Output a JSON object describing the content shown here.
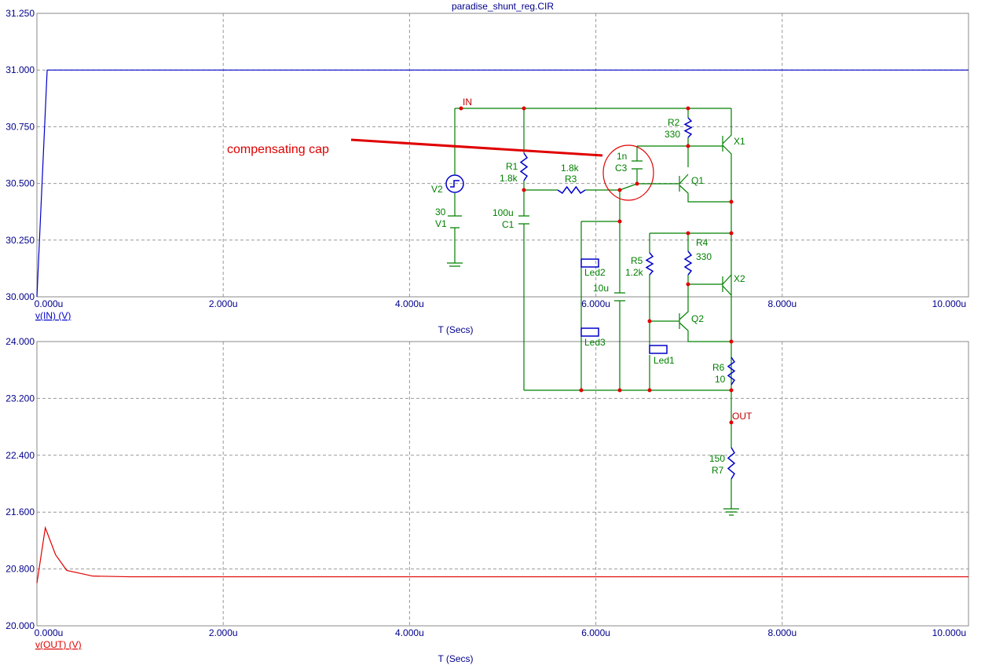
{
  "chart_data": [
    {
      "type": "line",
      "title": "paradise_shunt_reg.CIR",
      "xlabel": "T (Secs)",
      "x": [
        0,
        0.11,
        10
      ],
      "series": [
        {
          "name": "v(IN) (V)",
          "color": "#0000c8",
          "values": [
            30,
            31,
            31
          ]
        }
      ],
      "xlim": [
        0,
        10
      ],
      "xticks": [
        {
          "value": 0,
          "label": "0.000u"
        },
        {
          "value": 2,
          "label": "2.000u"
        },
        {
          "value": 4,
          "label": "4.000u"
        },
        {
          "value": 6,
          "label": "6.000u"
        },
        {
          "value": 8,
          "label": "8.000u"
        },
        {
          "value": 10,
          "label": "10.000u"
        }
      ],
      "ylim": [
        30,
        31.25
      ],
      "yticks": [
        {
          "value": 30,
          "label": "30.000"
        },
        {
          "value": 30.25,
          "label": "30.250"
        },
        {
          "value": 30.5,
          "label": "30.500"
        },
        {
          "value": 30.75,
          "label": "30.750"
        },
        {
          "value": 31,
          "label": "31.000"
        },
        {
          "value": 31.25,
          "label": "31.250"
        }
      ],
      "grid": true
    },
    {
      "type": "line",
      "xlabel": "T (Secs)",
      "x": [
        0,
        0.09,
        0.2,
        0.32,
        0.6,
        1,
        10
      ],
      "series": [
        {
          "name": "v(OUT) (V)",
          "color": "#e00000",
          "values": [
            20.6,
            21.38,
            21.0,
            20.78,
            20.7,
            20.69,
            20.69
          ]
        }
      ],
      "xlim": [
        0,
        10
      ],
      "xticks": [
        {
          "value": 0,
          "label": "0.000u"
        },
        {
          "value": 2,
          "label": "2.000u"
        },
        {
          "value": 4,
          "label": "4.000u"
        },
        {
          "value": 6,
          "label": "6.000u"
        },
        {
          "value": 8,
          "label": "8.000u"
        },
        {
          "value": 10,
          "label": "10.000u"
        }
      ],
      "ylim": [
        20,
        24
      ],
      "yticks": [
        {
          "value": 20,
          "label": "20.000"
        },
        {
          "value": 20.8,
          "label": "20.800"
        },
        {
          "value": 21.6,
          "label": "21.600"
        },
        {
          "value": 22.4,
          "label": "22.400"
        },
        {
          "value": 23.2,
          "label": "23.200"
        },
        {
          "value": 24,
          "label": "24.000"
        }
      ],
      "grid": true
    }
  ],
  "schematic": {
    "annotation": "compensating cap",
    "labels": [
      "IN",
      "R2",
      "330",
      "X1",
      "1n",
      "C3",
      "R1",
      "1.8k",
      "1.8k",
      "R3",
      "Q1",
      "V2",
      "30",
      "V1",
      "100u",
      "C1",
      "R4",
      "330",
      "R5",
      "1.2k",
      "X2",
      "Led2",
      "10u",
      "Q2",
      "Led3",
      "Led1",
      "R6",
      "10",
      "OUT",
      "150",
      "R7"
    ]
  }
}
